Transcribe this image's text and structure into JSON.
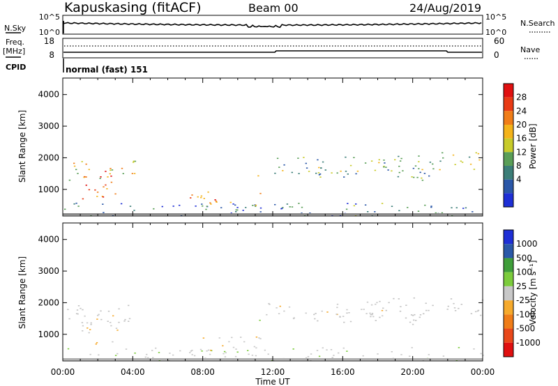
{
  "header": {
    "station": "Kapuskasing (fitACF)",
    "beam": "Beam 00",
    "date": "24/Aug/2019"
  },
  "sky_panel": {
    "left_label": "N.Sky",
    "left_ticks": [
      "10^5",
      "10^0"
    ],
    "right_ticks": [
      "10^5",
      "10^0"
    ],
    "right_label": "N.Search"
  },
  "freq_panel": {
    "left_label_1": "Freq.",
    "left_label_2": "[MHz]",
    "left_ticks": [
      "18",
      "8"
    ],
    "right_ticks": [
      "60",
      "0"
    ],
    "right_label": "Nave"
  },
  "cpid": {
    "label": "CPID",
    "value": "normal (fast) 151"
  },
  "axes": {
    "ylabel": "Slant Range [km]",
    "yticks": [
      "4000",
      "3000",
      "2000",
      "1000"
    ],
    "xticks": [
      "00:00",
      "04:00",
      "08:00",
      "12:00",
      "16:00",
      "20:00",
      "00:00"
    ],
    "xlabel": "Time UT"
  },
  "colors": {
    "power": [
      "#1e2fd6",
      "#2a57a8",
      "#3c7e78",
      "#5a9e57",
      "#c8cb2a",
      "#f4b31a",
      "#f07d18",
      "#e93a14",
      "#e01010"
    ],
    "velocity": [
      "#e01010",
      "#e9481a",
      "#f07d18",
      "#f6aa2c",
      "#c8c8c8",
      "#7ccc3c",
      "#3f9e3a",
      "#2a58a8",
      "#1e2fd6"
    ],
    "ground_scatter": "#c3c3c3"
  },
  "chart_data": [
    {
      "type": "heatmap",
      "title": "Power",
      "xlabel": "",
      "ylabel": "Slant Range [km]",
      "xlim": [
        "00:00",
        "24:00"
      ],
      "ylim": [
        180,
        4500
      ],
      "colorbar": {
        "label": "Power [dB]",
        "range": [
          0,
          32
        ],
        "ticks": [
          "28",
          "24",
          "20",
          "16",
          "12",
          "8",
          "4"
        ]
      },
      "regions": [
        {
          "t": [
            0.2,
            4.3
          ],
          "r": [
            1300,
            1950
          ],
          "dB": 18
        },
        {
          "t": [
            1.0,
            3.2
          ],
          "r": [
            700,
            1700
          ],
          "dB": 26
        },
        {
          "t": [
            0.0,
            24.0
          ],
          "r": [
            180,
            600
          ],
          "dB": 8
        },
        {
          "t": [
            7.2,
            11.3
          ],
          "r": [
            500,
            950
          ],
          "dB": 22
        },
        {
          "t": [
            10.9,
            11.3
          ],
          "r": [
            1100,
            1500
          ],
          "dB": 18
        },
        {
          "t": [
            11.6,
            18.6
          ],
          "r": [
            1500,
            2050
          ],
          "dB": 12
        },
        {
          "t": [
            14.0,
            21.0
          ],
          "r": [
            1300,
            1700
          ],
          "dB": 10
        },
        {
          "t": [
            18.0,
            24.0
          ],
          "r": [
            1600,
            2200
          ],
          "dB": 14
        }
      ]
    },
    {
      "type": "heatmap",
      "title": "Velocity",
      "xlabel": "Time UT",
      "ylabel": "Slant Range [km]",
      "xlim": [
        "00:00",
        "24:00"
      ],
      "ylim": [
        180,
        4500
      ],
      "colorbar": {
        "label": "Velocity [m s⁻¹]",
        "range": [
          -1200,
          1200
        ],
        "ticks": [
          "1000",
          "500",
          "100",
          "25",
          "-25",
          "-100",
          "-500",
          "-1000"
        ]
      },
      "regions": [
        {
          "t": [
            0.2,
            4.3
          ],
          "r": [
            1300,
            1950
          ],
          "v": 0,
          "ground_scatter": true
        },
        {
          "t": [
            1.0,
            3.2
          ],
          "r": [
            700,
            1700
          ],
          "v": -150
        },
        {
          "t": [
            0.0,
            24.0
          ],
          "r": [
            180,
            600
          ],
          "v": 60
        },
        {
          "t": [
            7.2,
            11.3
          ],
          "r": [
            500,
            950
          ],
          "v": -80
        },
        {
          "t": [
            10.9,
            11.3
          ],
          "r": [
            1100,
            1500
          ],
          "v": 120
        },
        {
          "t": [
            11.6,
            18.6
          ],
          "r": [
            1500,
            2050
          ],
          "v": -40
        },
        {
          "t": [
            14.0,
            21.0
          ],
          "r": [
            1300,
            1700
          ],
          "v": 0,
          "ground_scatter": true
        },
        {
          "t": [
            18.0,
            24.0
          ],
          "r": [
            1600,
            2200
          ],
          "v": 0,
          "ground_scatter": true
        }
      ]
    }
  ]
}
